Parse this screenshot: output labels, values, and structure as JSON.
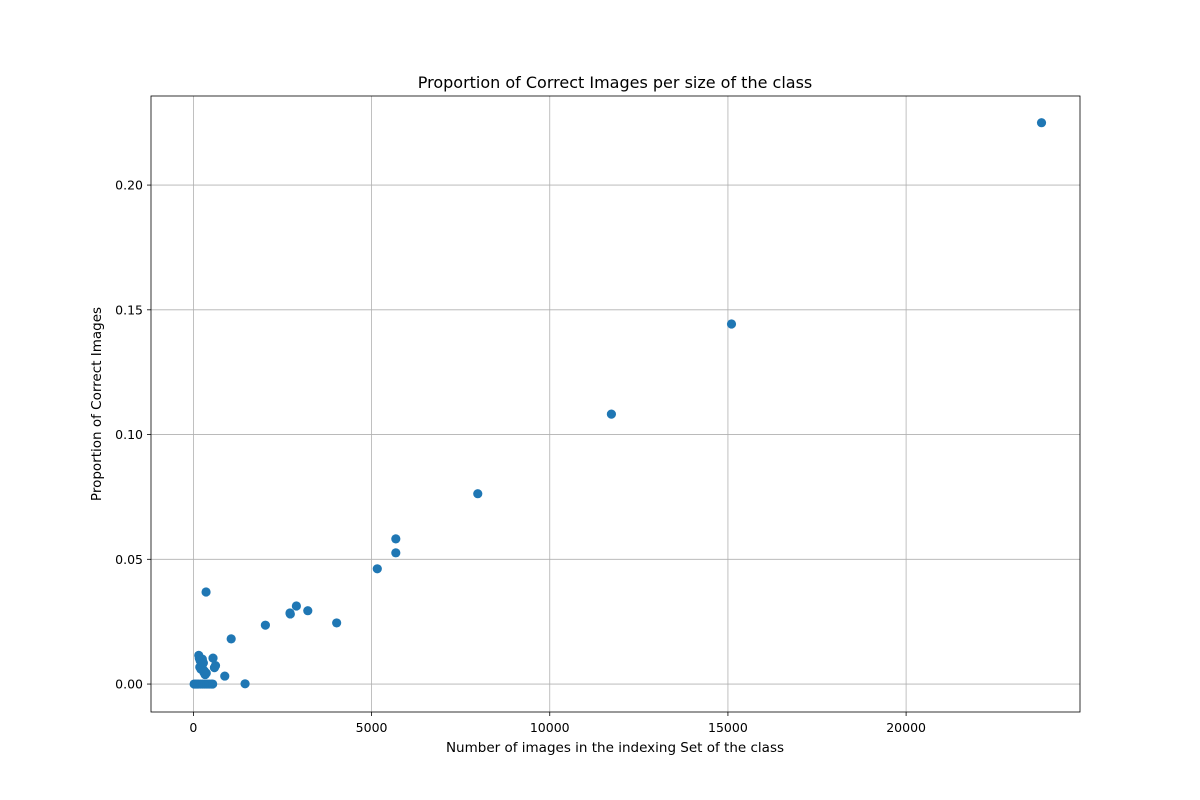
{
  "chart_data": {
    "type": "scatter",
    "title": "Proportion of Correct Images per size of the class",
    "xlabel": "Number of images in the indexing Set of the class",
    "ylabel": "Proportion of Correct Images",
    "xlim": [
      -1190,
      24880
    ],
    "ylim": [
      -0.0112,
      0.2357
    ],
    "x_ticks": [
      0,
      5000,
      10000,
      15000,
      20000
    ],
    "x_tick_labels": [
      "0",
      "5000",
      "10000",
      "15000",
      "20000"
    ],
    "y_ticks": [
      0.0,
      0.05,
      0.1,
      0.15,
      0.2
    ],
    "y_tick_labels": [
      "0.00",
      "0.05",
      "0.10",
      "0.15",
      "0.20"
    ],
    "grid": true,
    "marker_color": "#1f77b4",
    "series": [
      {
        "x": [
          23800,
          15100,
          11730,
          7980,
          5680,
          5680,
          5160,
          4020,
          3210,
          2890,
          2710,
          2720,
          2020,
          1060,
          355,
          550,
          620,
          590,
          880,
          1450,
          150,
          165,
          180,
          190,
          220,
          240,
          260,
          270,
          300,
          330,
          360,
          210,
          250,
          280,
          310,
          20,
          60,
          100,
          140,
          200,
          260,
          320,
          380,
          440,
          500,
          540
        ],
        "y": [
          0.225,
          0.1443,
          0.1082,
          0.0763,
          0.0582,
          0.0526,
          0.0462,
          0.0245,
          0.0294,
          0.0313,
          0.0285,
          0.0281,
          0.0236,
          0.0181,
          0.0369,
          0.0104,
          0.0074,
          0.0066,
          0.0032,
          0.0001,
          0.0115,
          0.0103,
          0.0068,
          0.0094,
          0.0088,
          0.0074,
          0.0082,
          0.0058,
          0.0046,
          0.0038,
          0.0044,
          0.006,
          0.01,
          0.0085,
          0.0052,
          0.0,
          0.0,
          0.0,
          0.0,
          0.0,
          0.0,
          0.0,
          0.0,
          0.0,
          0.0,
          0.0
        ]
      }
    ]
  }
}
